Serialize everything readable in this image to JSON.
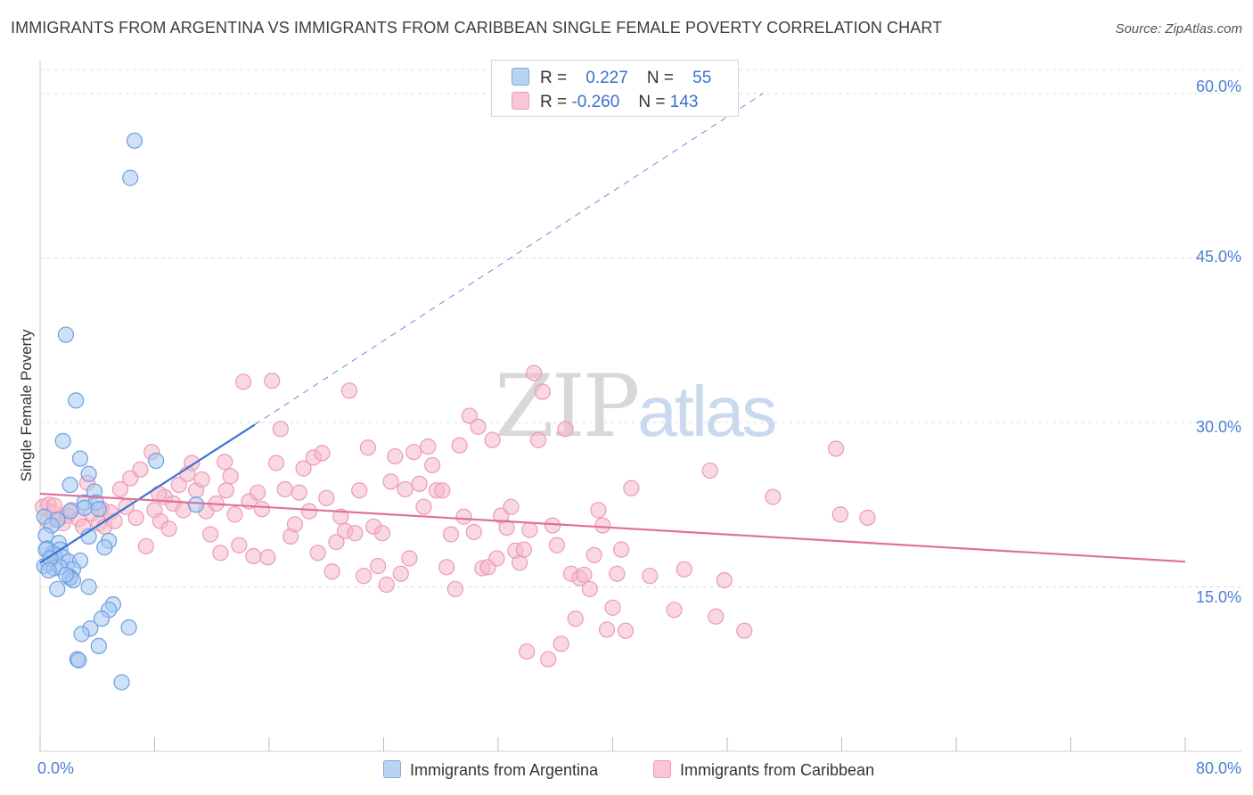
{
  "title": "IMMIGRANTS FROM ARGENTINA VS IMMIGRANTS FROM CARIBBEAN SINGLE FEMALE POVERTY CORRELATION CHART",
  "source": "Source: ZipAtlas.com",
  "watermark": {
    "zip": "ZIP",
    "atlas": "atlas"
  },
  "legend": {
    "rows": [
      {
        "r_label": "R =",
        "r_value": "0.227",
        "n_label": "N =",
        "n_value": "55"
      },
      {
        "r_label": "R =",
        "r_value": "-0.260",
        "n_label": "N =",
        "n_value": "143"
      }
    ]
  },
  "colors": {
    "argentina_fill": "#a8c8f0",
    "argentina_stroke": "#6d9fe0",
    "argentina_line": "#3a74d0",
    "caribbean_fill": "#f5b8cb",
    "caribbean_stroke": "#ec9ab5",
    "caribbean_line": "#e0709a",
    "tick_text": "#4a7fd4",
    "grid": "#dcdcdc"
  },
  "chart_data": {
    "type": "scatter",
    "title": "IMMIGRANTS FROM ARGENTINA VS IMMIGRANTS FROM CARIBBEAN SINGLE FEMALE POVERTY CORRELATION CHART",
    "xlabel": "",
    "ylabel": "Single Female Poverty",
    "xlim": [
      0,
      80
    ],
    "ylim": [
      0,
      63
    ],
    "x_tick_labels": [
      "0.0%",
      "80.0%"
    ],
    "y_ticks": [
      15,
      30,
      45,
      60
    ],
    "y_tick_labels": [
      "15.0%",
      "30.0%",
      "45.0%",
      "60.0%"
    ],
    "grid": "horizontal dashed",
    "legend_position": "top-center",
    "series": [
      {
        "name": "Immigrants from Argentina",
        "R": 0.227,
        "N": 55,
        "trend": {
          "x": [
            0,
            15
          ],
          "y": [
            17.2,
            29.8
          ],
          "dashed_extension_to": [
            50.5,
            60.0
          ]
        },
        "points": [
          [
            6.6,
            55.7
          ],
          [
            6.3,
            52.3
          ],
          [
            1.8,
            38.0
          ],
          [
            2.5,
            32.0
          ],
          [
            1.6,
            28.3
          ],
          [
            2.8,
            26.7
          ],
          [
            8.1,
            26.5
          ],
          [
            3.4,
            25.3
          ],
          [
            2.1,
            24.3
          ],
          [
            3.8,
            23.7
          ],
          [
            3.1,
            22.7
          ],
          [
            3.9,
            22.7
          ],
          [
            10.9,
            22.5
          ],
          [
            3.1,
            22.2
          ],
          [
            4.1,
            22.1
          ],
          [
            2.1,
            21.9
          ],
          [
            0.3,
            21.4
          ],
          [
            1.2,
            21.1
          ],
          [
            0.8,
            20.6
          ],
          [
            0.4,
            19.7
          ],
          [
            4.8,
            19.2
          ],
          [
            1.3,
            19.0
          ],
          [
            3.4,
            19.6
          ],
          [
            0.5,
            18.5
          ],
          [
            0.9,
            18.1
          ],
          [
            1.4,
            18.4
          ],
          [
            1.0,
            17.9
          ],
          [
            1.6,
            17.7
          ],
          [
            2.0,
            17.3
          ],
          [
            2.8,
            17.4
          ],
          [
            0.6,
            17.1
          ],
          [
            0.3,
            16.9
          ],
          [
            1.0,
            16.7
          ],
          [
            1.4,
            16.8
          ],
          [
            2.3,
            16.6
          ],
          [
            2.1,
            15.9
          ],
          [
            0.4,
            18.4
          ],
          [
            0.7,
            17.6
          ],
          [
            0.6,
            16.5
          ],
          [
            4.5,
            18.6
          ],
          [
            2.1,
            15.8
          ],
          [
            2.3,
            15.6
          ],
          [
            3.4,
            15.0
          ],
          [
            1.2,
            14.8
          ],
          [
            5.1,
            13.4
          ],
          [
            4.8,
            12.9
          ],
          [
            4.3,
            12.1
          ],
          [
            3.5,
            11.2
          ],
          [
            6.2,
            11.3
          ],
          [
            2.9,
            10.7
          ],
          [
            4.1,
            9.6
          ],
          [
            2.6,
            8.4
          ],
          [
            2.7,
            8.3
          ],
          [
            5.7,
            6.3
          ],
          [
            1.8,
            16.1
          ]
        ]
      },
      {
        "name": "Immigrants from Caribbean",
        "R": -0.26,
        "N": 143,
        "trend": {
          "x": [
            0,
            80
          ],
          "y": [
            23.5,
            17.3
          ]
        },
        "points": [
          [
            0.2,
            22.3
          ],
          [
            0.5,
            21.0
          ],
          [
            0.6,
            22.5
          ],
          [
            0.9,
            21.8
          ],
          [
            1.0,
            22.4
          ],
          [
            1.3,
            21.2
          ],
          [
            1.6,
            20.8
          ],
          [
            1.9,
            21.5
          ],
          [
            2.2,
            22.0
          ],
          [
            2.7,
            21.2
          ],
          [
            3.0,
            20.5
          ],
          [
            3.3,
            24.5
          ],
          [
            3.6,
            21.7
          ],
          [
            4.1,
            20.8
          ],
          [
            4.3,
            22.1
          ],
          [
            4.5,
            20.5
          ],
          [
            4.9,
            21.8
          ],
          [
            5.2,
            21.0
          ],
          [
            5.6,
            23.9
          ],
          [
            6.0,
            22.3
          ],
          [
            6.3,
            24.9
          ],
          [
            6.7,
            21.3
          ],
          [
            7.0,
            25.7
          ],
          [
            7.4,
            18.7
          ],
          [
            7.8,
            27.3
          ],
          [
            8.0,
            22.0
          ],
          [
            8.4,
            21.0
          ],
          [
            8.7,
            23.2
          ],
          [
            9.0,
            20.3
          ],
          [
            9.3,
            22.6
          ],
          [
            9.7,
            24.3
          ],
          [
            10.0,
            22.0
          ],
          [
            10.3,
            25.3
          ],
          [
            10.6,
            26.3
          ],
          [
            10.9,
            23.8
          ],
          [
            11.3,
            24.8
          ],
          [
            11.6,
            21.9
          ],
          [
            11.9,
            19.8
          ],
          [
            12.3,
            22.6
          ],
          [
            12.6,
            18.1
          ],
          [
            13.0,
            23.8
          ],
          [
            13.3,
            25.1
          ],
          [
            13.6,
            21.6
          ],
          [
            13.9,
            18.8
          ],
          [
            14.2,
            33.7
          ],
          [
            14.6,
            22.8
          ],
          [
            14.9,
            17.8
          ],
          [
            15.2,
            23.6
          ],
          [
            15.5,
            22.1
          ],
          [
            15.9,
            17.7
          ],
          [
            16.2,
            33.8
          ],
          [
            16.5,
            26.3
          ],
          [
            16.8,
            29.4
          ],
          [
            17.1,
            23.9
          ],
          [
            17.5,
            19.6
          ],
          [
            17.8,
            20.7
          ],
          [
            18.1,
            23.6
          ],
          [
            18.4,
            25.8
          ],
          [
            18.8,
            21.9
          ],
          [
            19.1,
            26.8
          ],
          [
            19.4,
            18.1
          ],
          [
            19.7,
            27.2
          ],
          [
            20.0,
            23.1
          ],
          [
            20.4,
            16.4
          ],
          [
            20.7,
            19.1
          ],
          [
            21.0,
            21.4
          ],
          [
            21.3,
            20.1
          ],
          [
            21.6,
            32.9
          ],
          [
            22.0,
            19.9
          ],
          [
            22.3,
            23.8
          ],
          [
            22.6,
            16.0
          ],
          [
            22.9,
            27.7
          ],
          [
            23.3,
            20.5
          ],
          [
            23.6,
            16.9
          ],
          [
            23.9,
            19.9
          ],
          [
            24.2,
            15.2
          ],
          [
            24.5,
            24.6
          ],
          [
            24.8,
            26.9
          ],
          [
            25.2,
            16.2
          ],
          [
            25.5,
            23.9
          ],
          [
            25.8,
            17.6
          ],
          [
            26.1,
            27.3
          ],
          [
            26.5,
            24.4
          ],
          [
            26.8,
            22.3
          ],
          [
            27.1,
            27.8
          ],
          [
            27.4,
            26.1
          ],
          [
            27.7,
            23.8
          ],
          [
            28.1,
            23.8
          ],
          [
            28.4,
            16.8
          ],
          [
            28.7,
            19.8
          ],
          [
            29.0,
            14.8
          ],
          [
            29.3,
            27.9
          ],
          [
            29.6,
            21.4
          ],
          [
            30.0,
            30.6
          ],
          [
            30.3,
            20.0
          ],
          [
            30.6,
            29.6
          ],
          [
            30.9,
            16.7
          ],
          [
            31.3,
            16.8
          ],
          [
            31.6,
            28.4
          ],
          [
            31.9,
            17.6
          ],
          [
            32.2,
            21.5
          ],
          [
            32.6,
            20.4
          ],
          [
            32.9,
            22.3
          ],
          [
            33.2,
            18.3
          ],
          [
            33.5,
            17.2
          ],
          [
            33.8,
            18.4
          ],
          [
            34.2,
            20.2
          ],
          [
            34.5,
            34.5
          ],
          [
            34.8,
            28.4
          ],
          [
            35.1,
            32.8
          ],
          [
            35.5,
            8.4
          ],
          [
            35.8,
            20.6
          ],
          [
            36.1,
            18.8
          ],
          [
            36.4,
            9.8
          ],
          [
            36.7,
            29.4
          ],
          [
            37.1,
            16.2
          ],
          [
            37.4,
            12.1
          ],
          [
            37.7,
            15.8
          ],
          [
            38.0,
            16.1
          ],
          [
            38.4,
            14.8
          ],
          [
            38.7,
            17.9
          ],
          [
            39.0,
            22.0
          ],
          [
            39.3,
            20.6
          ],
          [
            39.6,
            11.1
          ],
          [
            40.0,
            13.1
          ],
          [
            40.3,
            16.2
          ],
          [
            40.6,
            18.4
          ],
          [
            40.9,
            11.0
          ],
          [
            41.3,
            24.0
          ],
          [
            42.6,
            16.0
          ],
          [
            44.3,
            12.9
          ],
          [
            45.0,
            16.6
          ],
          [
            46.8,
            25.6
          ],
          [
            47.2,
            12.3
          ],
          [
            47.8,
            15.6
          ],
          [
            49.2,
            11.0
          ],
          [
            51.2,
            23.2
          ],
          [
            55.6,
            27.6
          ],
          [
            55.9,
            21.6
          ],
          [
            57.8,
            21.3
          ],
          [
            8.3,
            23.5
          ],
          [
            12.9,
            26.4
          ],
          [
            34.0,
            9.1
          ]
        ]
      }
    ]
  },
  "bottom_legend": [
    "Immigrants from Argentina",
    "Immigrants from Caribbean"
  ]
}
